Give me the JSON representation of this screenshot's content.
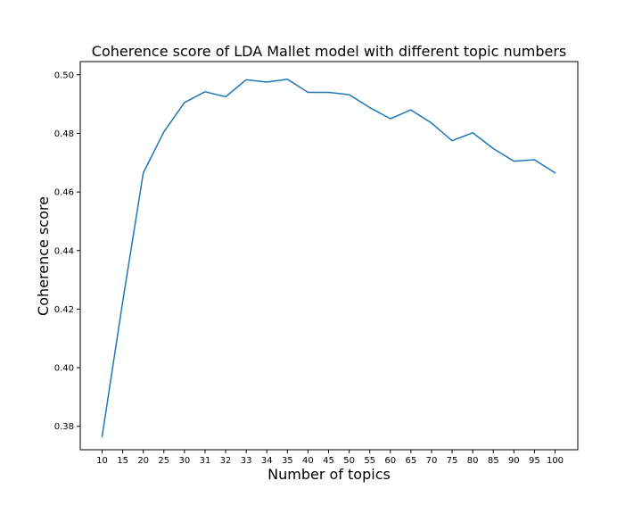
{
  "chart_data": {
    "type": "line",
    "title": "Coherence score of LDA Mallet model with different topic numbers",
    "xlabel": "Number of topics",
    "ylabel": "Coherence score",
    "categories": [
      "10",
      "15",
      "20",
      "25",
      "30",
      "31",
      "32",
      "33",
      "34",
      "35",
      "40",
      "45",
      "50",
      "55",
      "60",
      "65",
      "70",
      "75",
      "80",
      "85",
      "90",
      "95",
      "100"
    ],
    "yticks": [
      "0.38",
      "0.40",
      "0.42",
      "0.44",
      "0.46",
      "0.48",
      "0.50"
    ],
    "ylim": [
      0.372,
      0.5045
    ],
    "grid": false,
    "series": [
      {
        "color": "#1f77b4",
        "values": [
          0.3765,
          0.4225,
          0.4665,
          0.4805,
          0.4905,
          0.4942,
          0.4925,
          0.4983,
          0.4975,
          0.4985,
          0.494,
          0.494,
          0.4932,
          0.4888,
          0.485,
          0.488,
          0.4835,
          0.4775,
          0.4802,
          0.4748,
          0.4705,
          0.471,
          0.4665
        ]
      }
    ]
  }
}
